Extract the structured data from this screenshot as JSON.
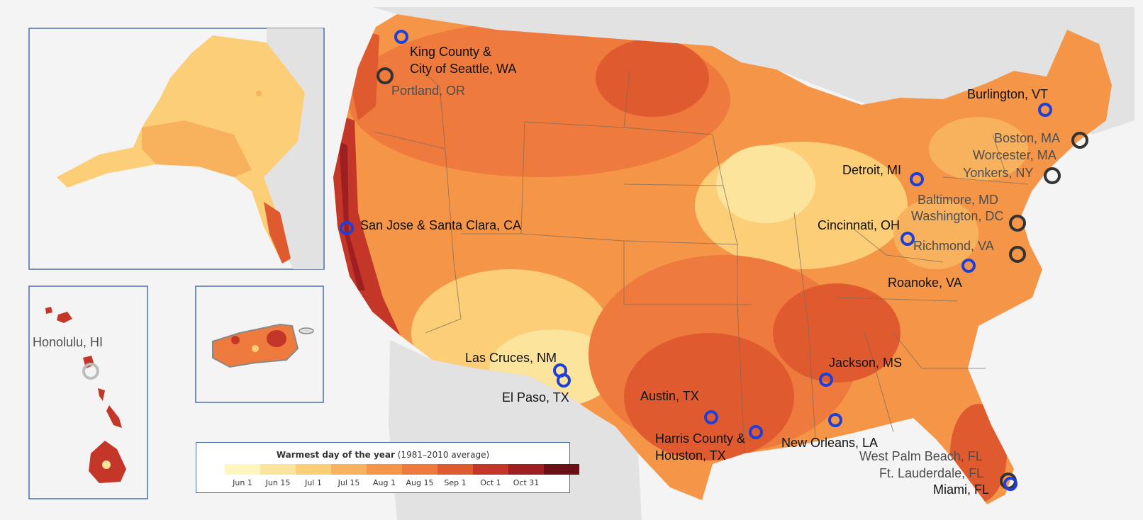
{
  "map": {
    "colors": {
      "ocean": "#f4f4f4",
      "land_outside": "#e2e2e2",
      "state_border": "#7a6a5a",
      "inset_border": "#4a6fa8"
    },
    "insets": [
      "Alaska",
      "Hawaii",
      "Puerto Rico"
    ]
  },
  "legend": {
    "title": "Warmest day of the year",
    "subtitle": "(1981–2010 average)",
    "colors": [
      "#fff6bf",
      "#fde49c",
      "#fcce78",
      "#f8b15d",
      "#f49548",
      "#ee7a3d",
      "#e05a2f",
      "#c43627",
      "#9e1f22",
      "#6b1014"
    ],
    "ticks": [
      "Jun 1",
      "Jun 15",
      "Jul 1",
      "Jul 15",
      "Aug 1",
      "Aug 15",
      "Sep 1",
      "Oct 1",
      "Oct 31"
    ]
  },
  "cities": [
    {
      "lines": [
        "King County &",
        "City of Seattle, WA"
      ],
      "marker": "blue"
    },
    {
      "lines": [
        "Portland, OR"
      ],
      "marker": "dark"
    },
    {
      "lines": [
        "San Jose & Santa Clara, CA"
      ],
      "marker": "blue"
    },
    {
      "lines": [
        "Honolulu, HI"
      ],
      "marker": "light"
    },
    {
      "lines": [
        "Las Cruces, NM"
      ],
      "marker": "blue"
    },
    {
      "lines": [
        "El Paso, TX"
      ],
      "marker": "blue"
    },
    {
      "lines": [
        "Austin, TX"
      ],
      "marker": "blue"
    },
    {
      "lines": [
        "Harris County &",
        "Houston, TX"
      ],
      "marker": "blue"
    },
    {
      "lines": [
        "New Orleans, LA"
      ],
      "marker": "blue"
    },
    {
      "lines": [
        "Jackson, MS"
      ],
      "marker": "blue"
    },
    {
      "lines": [
        "Detroit, MI"
      ],
      "marker": "blue"
    },
    {
      "lines": [
        "Cincinnati, OH"
      ],
      "marker": "blue"
    },
    {
      "lines": [
        "Roanoke, VA"
      ],
      "marker": "blue"
    },
    {
      "lines": [
        "Burlington, VT"
      ],
      "marker": "blue"
    },
    {
      "lines": [
        "Boston, MA"
      ],
      "marker": "dark"
    },
    {
      "lines": [
        "Worcester, MA"
      ],
      "marker": "none"
    },
    {
      "lines": [
        "Yonkers, NY"
      ],
      "marker": "dark"
    },
    {
      "lines": [
        "Baltimore, MD"
      ],
      "marker": "none"
    },
    {
      "lines": [
        "Washington, DC"
      ],
      "marker": "dark"
    },
    {
      "lines": [
        "Richmond, VA"
      ],
      "marker": "dark"
    },
    {
      "lines": [
        "West Palm Beach, FL"
      ],
      "marker": "none"
    },
    {
      "lines": [
        "Ft. Lauderdale, FL"
      ],
      "marker": "dark"
    },
    {
      "lines": [
        "Miami, FL"
      ],
      "marker": "blue"
    }
  ]
}
